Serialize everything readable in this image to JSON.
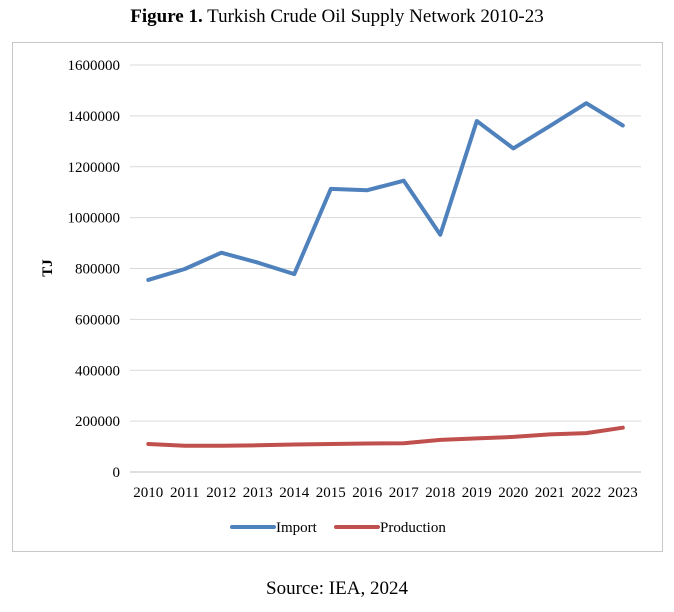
{
  "figure": {
    "label": "Figure 1.",
    "caption": "Turkish Crude Oil Supply Network 2010-23",
    "source": "Source: IEA, 2024"
  },
  "chart_data": {
    "type": "line",
    "ylabel": "TJ",
    "xlabel": "",
    "ylim": [
      0,
      1600000
    ],
    "yticks": [
      "0",
      "200000",
      "400000",
      "600000",
      "800000",
      "1000000",
      "1200000",
      "1400000",
      "1600000"
    ],
    "categories": [
      "2010",
      "2011",
      "2012",
      "2013",
      "2014",
      "2015",
      "2016",
      "2017",
      "2018",
      "2019",
      "2020",
      "2021",
      "2022",
      "2023"
    ],
    "grid": true,
    "legend_position": "bottom",
    "series": [
      {
        "name": "Import",
        "color": "#4f81bd",
        "values": [
          755000,
          798000,
          862000,
          823000,
          778000,
          1113000,
          1108000,
          1145000,
          933000,
          1380000,
          1272000,
          1360000,
          1450000,
          1362000
        ]
      },
      {
        "name": "Production",
        "color": "#c0504d",
        "values": [
          110000,
          103000,
          103000,
          105000,
          108000,
          110000,
          112000,
          113000,
          126000,
          132000,
          138000,
          148000,
          153000,
          174000
        ]
      }
    ]
  }
}
